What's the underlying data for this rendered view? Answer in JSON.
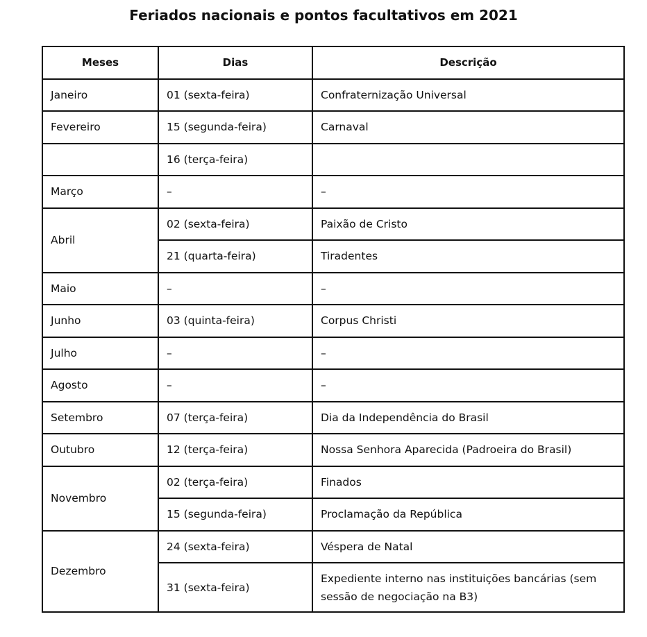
{
  "title": "Feriados nacionais e pontos facultativos em 2021",
  "headers": {
    "months": "Meses",
    "days": "Dias",
    "description": "Descrição"
  },
  "rows": [
    {
      "month": "Janeiro",
      "day": "01 (sexta-feira)",
      "description": "Confraternização Universal"
    },
    {
      "month": "Fevereiro",
      "day": "15 (segunda-feira)",
      "description": "Carnaval"
    },
    {
      "month": "",
      "day": "16 (terça-feira)",
      "description": ""
    },
    {
      "month": "Março",
      "day": "–",
      "description": "–"
    },
    {
      "month": "Abril",
      "day": "02 (sexta-feira)",
      "description": "Paixão de Cristo"
    },
    {
      "month": "",
      "day": "21 (quarta-feira)",
      "description": "Tiradentes"
    },
    {
      "month": "Maio",
      "day": "–",
      "description": "–"
    },
    {
      "month": "Junho",
      "day": "03 (quinta-feira)",
      "description": "Corpus Christi"
    },
    {
      "month": "Julho",
      "day": "–",
      "description": "–"
    },
    {
      "month": "Agosto",
      "day": "–",
      "description": "–"
    },
    {
      "month": "Setembro",
      "day": "07 (terça-feira)",
      "description": "Dia da Independência do Brasil"
    },
    {
      "month": "Outubro",
      "day": "12 (terça-feira)",
      "description": "Nossa Senhora Aparecida (Padroeira do Brasil)"
    },
    {
      "month": "Novembro",
      "day": "02 (terça-feira)",
      "description": "Finados"
    },
    {
      "month": "",
      "day": "15 (segunda-feira)",
      "description": "Proclamação da República"
    },
    {
      "month": "Dezembro",
      "day": "24 (sexta-feira)",
      "description": "Véspera de Natal"
    },
    {
      "month": "",
      "day": "31 (sexta-feira)",
      "description": "Expediente interno nas instituições bancárias (sem sessão de negociação na B3)"
    }
  ]
}
